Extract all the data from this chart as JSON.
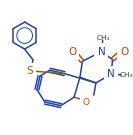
{
  "background": "#ffffff",
  "bond_color": "#2244aa",
  "N_color": "#2244aa",
  "O_color": "#cc4400",
  "S_color": "#886600",
  "figsize": [
    1.33,
    1.35
  ],
  "dpi": 100,
  "xlim": [
    0.0,
    1.0
  ],
  "ylim": [
    0.05,
    1.05
  ]
}
